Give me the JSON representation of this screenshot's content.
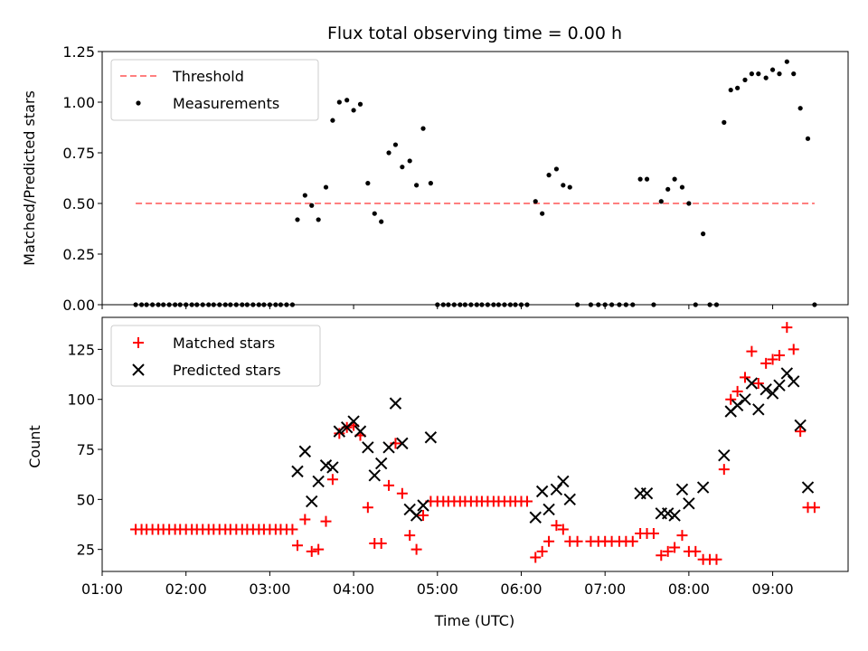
{
  "chart_data": [
    {
      "type": "scatter",
      "title": "Flux total observing time = 0.00 h",
      "xlabel": "",
      "ylabel": "Matched/Predicted stars",
      "xlim": [
        1.0,
        9.9
      ],
      "ylim": [
        0.0,
        1.25
      ],
      "yticks": [
        0.0,
        0.25,
        0.5,
        0.75,
        1.0,
        1.25
      ],
      "ytick_labels": [
        "0.00",
        "0.25",
        "0.50",
        "0.75",
        "1.00",
        "1.25"
      ],
      "grid": false,
      "legend_position": "top-left",
      "legend": [
        "Threshold",
        "Measurements"
      ],
      "colors": {
        "threshold": "#ff7f7f",
        "measurements": "#000000"
      },
      "threshold": {
        "name": "Threshold",
        "y": 0.5,
        "x_start": 1.4,
        "x_end": 9.5
      },
      "series": [
        {
          "name": "Measurements",
          "points": [
            [
              1.4,
              0
            ],
            [
              1.47,
              0
            ],
            [
              1.53,
              0
            ],
            [
              1.6,
              0
            ],
            [
              1.67,
              0
            ],
            [
              1.73,
              0
            ],
            [
              1.8,
              0
            ],
            [
              1.87,
              0
            ],
            [
              1.93,
              0
            ],
            [
              2.0,
              0
            ],
            [
              2.07,
              0
            ],
            [
              2.13,
              0
            ],
            [
              2.2,
              0
            ],
            [
              2.27,
              0
            ],
            [
              2.33,
              0
            ],
            [
              2.4,
              0
            ],
            [
              2.47,
              0
            ],
            [
              2.53,
              0
            ],
            [
              2.6,
              0
            ],
            [
              2.67,
              0
            ],
            [
              2.73,
              0
            ],
            [
              2.8,
              0
            ],
            [
              2.87,
              0
            ],
            [
              2.93,
              0
            ],
            [
              3.0,
              0
            ],
            [
              3.07,
              0
            ],
            [
              3.13,
              0
            ],
            [
              3.2,
              0
            ],
            [
              3.27,
              0
            ],
            [
              3.33,
              0.42
            ],
            [
              3.42,
              0.54
            ],
            [
              3.5,
              0.49
            ],
            [
              3.58,
              0.42
            ],
            [
              3.67,
              0.58
            ],
            [
              3.75,
              0.91
            ],
            [
              3.83,
              1.0
            ],
            [
              3.92,
              1.01
            ],
            [
              4.0,
              0.96
            ],
            [
              4.08,
              0.99
            ],
            [
              4.17,
              0.6
            ],
            [
              4.25,
              0.45
            ],
            [
              4.33,
              0.41
            ],
            [
              4.42,
              0.75
            ],
            [
              4.5,
              0.79
            ],
            [
              4.58,
              0.68
            ],
            [
              4.67,
              0.71
            ],
            [
              4.75,
              0.59
            ],
            [
              4.83,
              0.87
            ],
            [
              4.92,
              0.6
            ],
            [
              5.0,
              0
            ],
            [
              5.07,
              0
            ],
            [
              5.13,
              0
            ],
            [
              5.2,
              0
            ],
            [
              5.27,
              0
            ],
            [
              5.33,
              0
            ],
            [
              5.4,
              0
            ],
            [
              5.47,
              0
            ],
            [
              5.53,
              0
            ],
            [
              5.6,
              0
            ],
            [
              5.67,
              0
            ],
            [
              5.73,
              0
            ],
            [
              5.8,
              0
            ],
            [
              5.87,
              0
            ],
            [
              5.93,
              0
            ],
            [
              6.0,
              0
            ],
            [
              6.07,
              0
            ],
            [
              6.17,
              0.51
            ],
            [
              6.25,
              0.45
            ],
            [
              6.33,
              0.64
            ],
            [
              6.42,
              0.67
            ],
            [
              6.5,
              0.59
            ],
            [
              6.58,
              0.58
            ],
            [
              6.67,
              0
            ],
            [
              6.83,
              0
            ],
            [
              6.92,
              0
            ],
            [
              7.0,
              0
            ],
            [
              7.08,
              0
            ],
            [
              7.17,
              0
            ],
            [
              7.25,
              0
            ],
            [
              7.33,
              0
            ],
            [
              7.42,
              0.62
            ],
            [
              7.5,
              0.62
            ],
            [
              7.58,
              0
            ],
            [
              7.67,
              0.51
            ],
            [
              7.75,
              0.57
            ],
            [
              7.83,
              0.62
            ],
            [
              7.92,
              0.58
            ],
            [
              8.0,
              0.5
            ],
            [
              8.08,
              0
            ],
            [
              8.17,
              0.35
            ],
            [
              8.25,
              0
            ],
            [
              8.33,
              0
            ],
            [
              8.42,
              0.9
            ],
            [
              8.5,
              1.06
            ],
            [
              8.58,
              1.07
            ],
            [
              8.67,
              1.11
            ],
            [
              8.75,
              1.14
            ],
            [
              8.83,
              1.14
            ],
            [
              8.92,
              1.12
            ],
            [
              9.0,
              1.16
            ],
            [
              9.08,
              1.14
            ],
            [
              9.17,
              1.2
            ],
            [
              9.25,
              1.14
            ],
            [
              9.33,
              0.97
            ],
            [
              9.42,
              0.82
            ],
            [
              9.5,
              0
            ]
          ]
        }
      ]
    },
    {
      "type": "scatter",
      "title": "",
      "xlabel": "Time (UTC)",
      "ylabel": "Count",
      "xlim": [
        1.0,
        9.9
      ],
      "ylim": [
        14,
        141
      ],
      "xticks": [
        1,
        2,
        3,
        4,
        5,
        6,
        7,
        8,
        9
      ],
      "xtick_labels": [
        "01:00",
        "02:00",
        "03:00",
        "04:00",
        "05:00",
        "06:00",
        "07:00",
        "08:00",
        "09:00"
      ],
      "yticks": [
        25,
        50,
        75,
        100,
        125
      ],
      "ytick_labels": [
        "25",
        "50",
        "75",
        "100",
        "125"
      ],
      "grid": false,
      "legend_position": "top-left",
      "legend": [
        "Matched stars",
        "Predicted stars"
      ],
      "colors": {
        "matched": "#ff0000",
        "predicted": "#000000"
      },
      "series": [
        {
          "name": "Matched stars",
          "marker": "+",
          "points": [
            [
              1.4,
              35
            ],
            [
              1.47,
              35
            ],
            [
              1.53,
              35
            ],
            [
              1.6,
              35
            ],
            [
              1.67,
              35
            ],
            [
              1.73,
              35
            ],
            [
              1.8,
              35
            ],
            [
              1.87,
              35
            ],
            [
              1.93,
              35
            ],
            [
              2.0,
              35
            ],
            [
              2.07,
              35
            ],
            [
              2.13,
              35
            ],
            [
              2.2,
              35
            ],
            [
              2.27,
              35
            ],
            [
              2.33,
              35
            ],
            [
              2.4,
              35
            ],
            [
              2.47,
              35
            ],
            [
              2.53,
              35
            ],
            [
              2.6,
              35
            ],
            [
              2.67,
              35
            ],
            [
              2.73,
              35
            ],
            [
              2.8,
              35
            ],
            [
              2.87,
              35
            ],
            [
              2.93,
              35
            ],
            [
              3.0,
              35
            ],
            [
              3.07,
              35
            ],
            [
              3.13,
              35
            ],
            [
              3.2,
              35
            ],
            [
              3.27,
              35
            ],
            [
              3.33,
              27
            ],
            [
              3.42,
              40
            ],
            [
              3.5,
              24
            ],
            [
              3.58,
              25
            ],
            [
              3.67,
              39
            ],
            [
              3.75,
              60
            ],
            [
              3.83,
              83
            ],
            [
              3.92,
              86
            ],
            [
              4.0,
              87
            ],
            [
              4.08,
              82
            ],
            [
              4.17,
              46
            ],
            [
              4.25,
              28
            ],
            [
              4.33,
              28
            ],
            [
              4.42,
              57
            ],
            [
              4.5,
              78
            ],
            [
              4.58,
              53
            ],
            [
              4.67,
              32
            ],
            [
              4.75,
              25
            ],
            [
              4.83,
              42
            ],
            [
              4.92,
              49
            ],
            [
              5.0,
              49
            ],
            [
              5.07,
              49
            ],
            [
              5.13,
              49
            ],
            [
              5.2,
              49
            ],
            [
              5.27,
              49
            ],
            [
              5.33,
              49
            ],
            [
              5.4,
              49
            ],
            [
              5.47,
              49
            ],
            [
              5.53,
              49
            ],
            [
              5.6,
              49
            ],
            [
              5.67,
              49
            ],
            [
              5.73,
              49
            ],
            [
              5.8,
              49
            ],
            [
              5.87,
              49
            ],
            [
              5.93,
              49
            ],
            [
              6.0,
              49
            ],
            [
              6.07,
              49
            ],
            [
              6.17,
              21
            ],
            [
              6.25,
              24
            ],
            [
              6.33,
              29
            ],
            [
              6.42,
              37
            ],
            [
              6.5,
              35
            ],
            [
              6.58,
              29
            ],
            [
              6.67,
              29
            ],
            [
              6.83,
              29
            ],
            [
              6.92,
              29
            ],
            [
              7.0,
              29
            ],
            [
              7.08,
              29
            ],
            [
              7.17,
              29
            ],
            [
              7.25,
              29
            ],
            [
              7.33,
              29
            ],
            [
              7.42,
              33
            ],
            [
              7.5,
              33
            ],
            [
              7.58,
              33
            ],
            [
              7.67,
              22
            ],
            [
              7.75,
              24
            ],
            [
              7.83,
              26
            ],
            [
              7.92,
              32
            ],
            [
              8.0,
              24
            ],
            [
              8.08,
              24
            ],
            [
              8.17,
              20
            ],
            [
              8.25,
              20
            ],
            [
              8.33,
              20
            ],
            [
              8.42,
              65
            ],
            [
              8.5,
              100
            ],
            [
              8.58,
              104
            ],
            [
              8.67,
              111
            ],
            [
              8.75,
              124
            ],
            [
              8.83,
              108
            ],
            [
              8.92,
              118
            ],
            [
              9.0,
              120
            ],
            [
              9.08,
              122
            ],
            [
              9.17,
              136
            ],
            [
              9.25,
              125
            ],
            [
              9.33,
              84
            ],
            [
              9.42,
              46
            ],
            [
              9.5,
              46
            ]
          ]
        },
        {
          "name": "Predicted stars",
          "marker": "x",
          "points": [
            [
              3.33,
              64
            ],
            [
              3.42,
              74
            ],
            [
              3.5,
              49
            ],
            [
              3.58,
              59
            ],
            [
              3.67,
              67
            ],
            [
              3.75,
              66
            ],
            [
              3.83,
              84
            ],
            [
              3.92,
              86
            ],
            [
              4.0,
              89
            ],
            [
              4.08,
              84
            ],
            [
              4.17,
              76
            ],
            [
              4.25,
              62
            ],
            [
              4.33,
              68
            ],
            [
              4.42,
              76
            ],
            [
              4.5,
              98
            ],
            [
              4.58,
              78
            ],
            [
              4.67,
              45
            ],
            [
              4.75,
              42
            ],
            [
              4.83,
              47
            ],
            [
              4.92,
              81
            ],
            [
              6.17,
              41
            ],
            [
              6.25,
              54
            ],
            [
              6.33,
              45
            ],
            [
              6.42,
              55
            ],
            [
              6.5,
              59
            ],
            [
              6.58,
              50
            ],
            [
              7.42,
              53
            ],
            [
              7.5,
              53
            ],
            [
              7.67,
              43
            ],
            [
              7.75,
              43
            ],
            [
              7.83,
              42
            ],
            [
              7.92,
              55
            ],
            [
              8.0,
              48
            ],
            [
              8.17,
              56
            ],
            [
              8.42,
              72
            ],
            [
              8.5,
              94
            ],
            [
              8.58,
              97
            ],
            [
              8.67,
              100
            ],
            [
              8.75,
              108
            ],
            [
              8.83,
              95
            ],
            [
              8.92,
              105
            ],
            [
              9.0,
              103
            ],
            [
              9.08,
              107
            ],
            [
              9.17,
              113
            ],
            [
              9.25,
              109
            ],
            [
              9.33,
              87
            ],
            [
              9.42,
              56
            ]
          ]
        }
      ]
    }
  ]
}
